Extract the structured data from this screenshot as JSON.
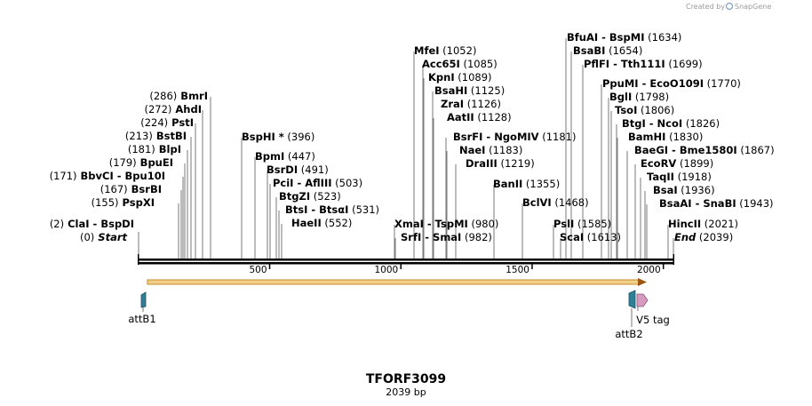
{
  "header": {
    "credit_text": "Created by",
    "brand": "SnapGene",
    "brand_color": "#7aa0c8"
  },
  "plasmid": {
    "name": "TFORF3099",
    "length_label": "2039 bp",
    "length": 2039
  },
  "ruler": {
    "ticks": [
      500,
      1000,
      1500,
      2000
    ]
  },
  "sites": [
    {
      "parts": [
        {
          "t": "(0)",
          "s": "pos"
        },
        {
          "t": "Start",
          "s": "nm it"
        }
      ]
    },
    {
      "parts": [
        {
          "t": "(2)",
          "s": "pos"
        },
        {
          "t": "ClaI",
          "s": "nm"
        },
        {
          "t": "- BspDI",
          "s": "nm"
        }
      ]
    },
    {
      "parts": [
        {
          "t": "(155)",
          "s": "pos"
        },
        {
          "t": "PspXI",
          "s": "nm"
        }
      ]
    },
    {
      "parts": [
        {
          "t": "(167)",
          "s": "pos"
        },
        {
          "t": "BsrBI",
          "s": "nm"
        }
      ]
    },
    {
      "parts": [
        {
          "t": "(171)",
          "s": "pos"
        },
        {
          "t": "BbvCI",
          "s": "nm"
        },
        {
          "t": "- Bpu10I",
          "s": "nm"
        }
      ]
    },
    {
      "parts": [
        {
          "t": "(179)",
          "s": "pos"
        },
        {
          "t": "BpuEI",
          "s": "nm"
        }
      ]
    },
    {
      "parts": [
        {
          "t": "(181)",
          "s": "pos"
        },
        {
          "t": "BlpI",
          "s": "nm"
        }
      ]
    },
    {
      "parts": [
        {
          "t": "(213)",
          "s": "pos"
        },
        {
          "t": "BstBI",
          "s": "nm"
        }
      ]
    },
    {
      "parts": [
        {
          "t": "(224)",
          "s": "pos"
        },
        {
          "t": "PstI",
          "s": "nm"
        }
      ]
    },
    {
      "parts": [
        {
          "t": "(272)",
          "s": "pos"
        },
        {
          "t": "AhdI",
          "s": "nm"
        }
      ]
    },
    {
      "parts": [
        {
          "t": "(286)",
          "s": "pos"
        },
        {
          "t": "BmrI",
          "s": "nm"
        }
      ]
    },
    {
      "parts": [
        {
          "t": "BspHI *",
          "s": "nm"
        },
        {
          "t": "(396)",
          "s": "pos"
        }
      ]
    },
    {
      "parts": [
        {
          "t": "BpmI",
          "s": "nm"
        },
        {
          "t": "(447)",
          "s": "pos"
        }
      ]
    },
    {
      "parts": [
        {
          "t": "BsrDI",
          "s": "nm"
        },
        {
          "t": "(491)",
          "s": "pos"
        }
      ]
    },
    {
      "parts": [
        {
          "t": "PciI",
          "s": "nm"
        },
        {
          "t": "- AflIII",
          "s": "nm"
        },
        {
          "t": "(503)",
          "s": "pos"
        }
      ]
    },
    {
      "parts": [
        {
          "t": "BtgZI",
          "s": "nm"
        },
        {
          "t": "(523)",
          "s": "pos"
        }
      ]
    },
    {
      "parts": [
        {
          "t": "BtsI",
          "s": "nm"
        },
        {
          "t": "- BtsαI",
          "s": "nm"
        },
        {
          "t": "(531)",
          "s": "pos"
        }
      ]
    },
    {
      "parts": [
        {
          "t": "HaeII",
          "s": "nm"
        },
        {
          "t": "(552)",
          "s": "pos"
        }
      ]
    },
    {
      "parts": [
        {
          "t": "MfeI",
          "s": "nm"
        },
        {
          "t": "(1052)",
          "s": "pos"
        }
      ]
    },
    {
      "parts": [
        {
          "t": "Acc65I",
          "s": "nm"
        },
        {
          "t": "(1085)",
          "s": "pos"
        }
      ]
    },
    {
      "parts": [
        {
          "t": "KpnI",
          "s": "nm"
        },
        {
          "t": "(1089)",
          "s": "pos"
        }
      ]
    },
    {
      "parts": [
        {
          "t": "BsaHI",
          "s": "nm"
        },
        {
          "t": "(1125)",
          "s": "pos"
        }
      ]
    },
    {
      "parts": [
        {
          "t": "ZraI",
          "s": "nm"
        },
        {
          "t": "(1126)",
          "s": "pos"
        }
      ]
    },
    {
      "parts": [
        {
          "t": "AatII",
          "s": "nm"
        },
        {
          "t": "(1128)",
          "s": "pos"
        }
      ]
    },
    {
      "parts": [
        {
          "t": "BsrFI",
          "s": "nm"
        },
        {
          "t": "- NgoMIV",
          "s": "nm"
        },
        {
          "t": "(1181)",
          "s": "pos"
        }
      ]
    },
    {
      "parts": [
        {
          "t": "NaeI",
          "s": "nm"
        },
        {
          "t": "(1183)",
          "s": "pos"
        }
      ]
    },
    {
      "parts": [
        {
          "t": "DraIII",
          "s": "nm"
        },
        {
          "t": "(1219)",
          "s": "pos"
        }
      ]
    },
    {
      "parts": [
        {
          "t": "XmaI",
          "s": "nm"
        },
        {
          "t": "- TspMI",
          "s": "nm"
        },
        {
          "t": "(980)",
          "s": "pos"
        }
      ]
    },
    {
      "parts": [
        {
          "t": "SrfI",
          "s": "nm"
        },
        {
          "t": "- SmaI",
          "s": "nm"
        },
        {
          "t": "(982)",
          "s": "pos"
        }
      ]
    },
    {
      "parts": [
        {
          "t": "BanII",
          "s": "nm"
        },
        {
          "t": "(1355)",
          "s": "pos"
        }
      ]
    },
    {
      "parts": [
        {
          "t": "BclVI",
          "s": "nm"
        },
        {
          "t": "(1468)",
          "s": "pos"
        }
      ]
    },
    {
      "parts": [
        {
          "t": "PslI",
          "s": "nm"
        },
        {
          "t": "(1585)",
          "s": "pos"
        }
      ]
    },
    {
      "parts": [
        {
          "t": "ScaI",
          "s": "nm"
        },
        {
          "t": "(1613)",
          "s": "pos"
        }
      ]
    },
    {
      "parts": [
        {
          "t": "BfuAI",
          "s": "nm"
        },
        {
          "t": "- BspMI",
          "s": "nm"
        },
        {
          "t": "(1634)",
          "s": "pos"
        }
      ]
    },
    {
      "parts": [
        {
          "t": "BsaBI",
          "s": "nm"
        },
        {
          "t": "(1654)",
          "s": "pos"
        }
      ]
    },
    {
      "parts": [
        {
          "t": "PflFI",
          "s": "nm"
        },
        {
          "t": "- Tth111I",
          "s": "nm"
        },
        {
          "t": "(1699)",
          "s": "pos"
        }
      ]
    },
    {
      "parts": [
        {
          "t": "PpuMI",
          "s": "nm"
        },
        {
          "t": "- EcoO109I",
          "s": "nm"
        },
        {
          "t": "(1770)",
          "s": "pos"
        }
      ]
    },
    {
      "parts": [
        {
          "t": "BglI",
          "s": "nm"
        },
        {
          "t": "(1798)",
          "s": "pos"
        }
      ]
    },
    {
      "parts": [
        {
          "t": "TsoI",
          "s": "nm"
        },
        {
          "t": "(1806)",
          "s": "pos"
        }
      ]
    },
    {
      "parts": [
        {
          "t": "BtgI",
          "s": "nm"
        },
        {
          "t": "- NcoI",
          "s": "nm"
        },
        {
          "t": "(1826)",
          "s": "pos"
        }
      ]
    },
    {
      "parts": [
        {
          "t": "BamHI",
          "s": "nm"
        },
        {
          "t": "(1830)",
          "s": "pos"
        }
      ]
    },
    {
      "parts": [
        {
          "t": "BaeGI",
          "s": "nm"
        },
        {
          "t": "- Bme1580I",
          "s": "nm"
        },
        {
          "t": "(1867)",
          "s": "pos"
        }
      ]
    },
    {
      "parts": [
        {
          "t": "EcoRV",
          "s": "nm"
        },
        {
          "t": "(1899)",
          "s": "pos"
        }
      ]
    },
    {
      "parts": [
        {
          "t": "TaqII",
          "s": "nm"
        },
        {
          "t": "(1918)",
          "s": "pos"
        }
      ]
    },
    {
      "parts": [
        {
          "t": "BsaI",
          "s": "nm"
        },
        {
          "t": "(1936)",
          "s": "pos"
        }
      ]
    },
    {
      "parts": [
        {
          "t": "BsaAI",
          "s": "nm"
        },
        {
          "t": "- SnaBI",
          "s": "nm"
        },
        {
          "t": "(1943)",
          "s": "pos"
        }
      ]
    },
    {
      "parts": [
        {
          "t": "HincII",
          "s": "nm"
        },
        {
          "t": "(2021)",
          "s": "pos"
        }
      ]
    },
    {
      "parts": [
        {
          "t": "End",
          "s": "nm it"
        },
        {
          "t": "(2039)",
          "s": "pos"
        }
      ]
    }
  ],
  "features": [
    {
      "name": "attB1",
      "color": "#2f7f97"
    },
    {
      "name": "attB2",
      "color": "#2f7f97"
    },
    {
      "name": "V5 tag",
      "color": "#d79bc0"
    }
  ],
  "orf": {
    "fill": "#f1d08a",
    "stroke": "#c9882a",
    "arrow": "#a05412"
  }
}
